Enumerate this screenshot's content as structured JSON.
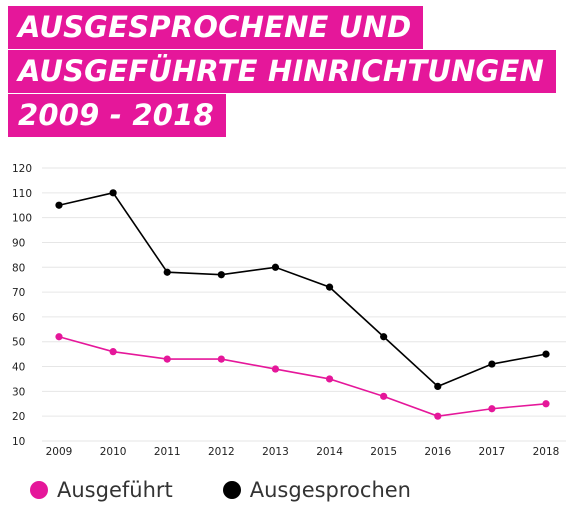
{
  "title_lines": [
    "AUSGESPROCHENE UND",
    "AUSGEFÜHRTE HINRICHTUNGEN",
    "2009 - 2018"
  ],
  "colors": {
    "accent": "#e5179a",
    "ausgefuehrt": "#e5179a",
    "ausgesprochen": "#000000",
    "grid": "#e6e6e6"
  },
  "chart_data": {
    "type": "line",
    "title": "AUSGESPROCHENE UND AUSGEFÜHRTE HINRICHTUNGEN 2009 - 2018",
    "x": [
      "2009",
      "2010",
      "2011",
      "2012",
      "2013",
      "2014",
      "2015",
      "2016",
      "2017",
      "2018"
    ],
    "ylim": [
      10,
      120
    ],
    "yticks": [
      "10",
      "20",
      "30",
      "40",
      "50",
      "60",
      "70",
      "80",
      "90",
      "100",
      "110",
      "120"
    ],
    "grid": true,
    "legend_placement": "bottom-left",
    "series": [
      {
        "name": "Ausgeführt",
        "color": "#e5179a",
        "values": [
          52,
          46,
          43,
          43,
          39,
          35,
          28,
          20,
          23,
          25
        ]
      },
      {
        "name": "Ausgesprochen",
        "color": "#000000",
        "values": [
          105,
          110,
          78,
          77,
          80,
          72,
          52,
          32,
          41,
          45
        ]
      }
    ]
  }
}
